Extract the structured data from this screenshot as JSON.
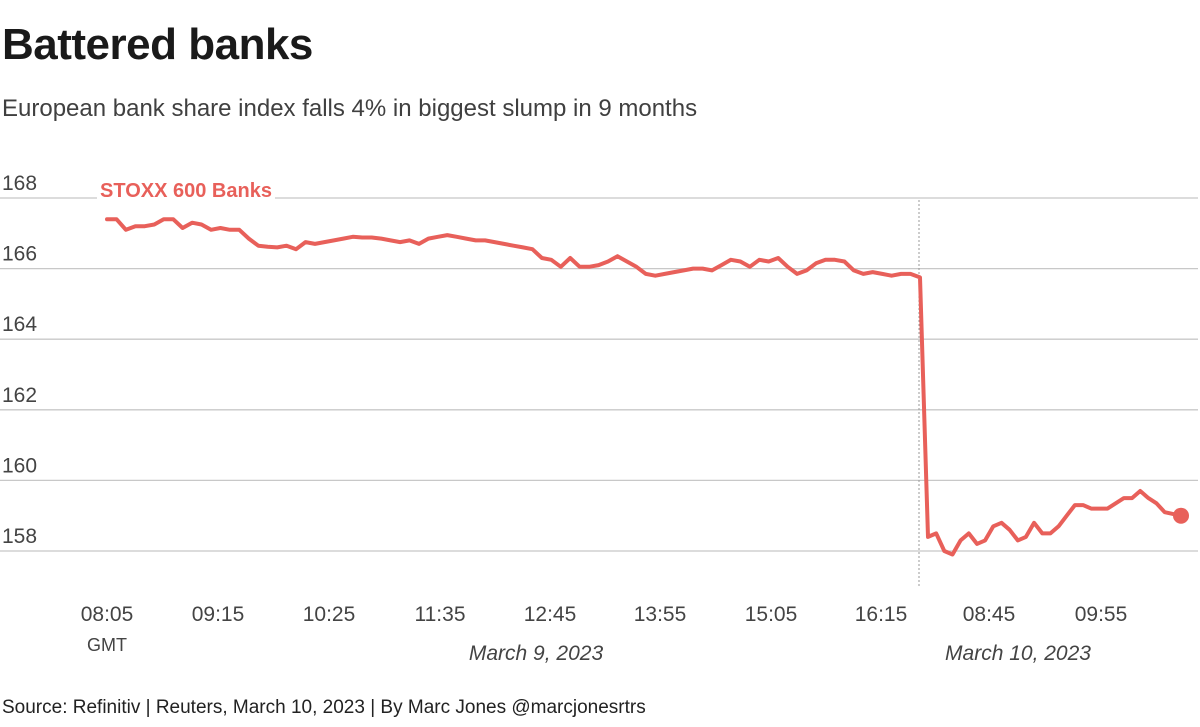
{
  "header": {
    "title": "Battered banks",
    "subtitle": "European bank share index falls 4% in biggest slump in 9 months"
  },
  "footer": {
    "source": "Source: Refinitiv | Reuters, March 10, 2023 | By Marc Jones @marcjonesrtrs"
  },
  "colors": {
    "series": "#e8605a",
    "grid": "#c8c8c8",
    "divider": "#999999"
  },
  "chart_data": {
    "type": "line",
    "title": "Battered banks",
    "subtitle": "European bank share index falls 4% in biggest slump in 9 months",
    "xlabel": "",
    "ylabel": "",
    "ylim": [
      157,
      168
    ],
    "yticks": [
      158,
      160,
      162,
      164,
      166,
      168
    ],
    "grid": true,
    "x_tick_labels": [
      "08:05",
      "09:15",
      "10:25",
      "11:35",
      "12:45",
      "13:55",
      "15:05",
      "16:15",
      "08:45",
      "09:55"
    ],
    "x_tick_sublabel": "GMT",
    "date_labels": [
      "March 9, 2023",
      "March 10, 2023"
    ],
    "series": [
      {
        "name": "STOXX 600 Banks",
        "day1": [
          167.4,
          167.4,
          167.1,
          167.2,
          167.2,
          167.25,
          167.4,
          167.4,
          167.15,
          167.3,
          167.25,
          167.1,
          167.15,
          167.1,
          167.1,
          166.85,
          166.65,
          166.62,
          166.6,
          166.65,
          166.55,
          166.75,
          166.7,
          166.75,
          166.8,
          166.85,
          166.9,
          166.88,
          166.88,
          166.85,
          166.8,
          166.75,
          166.8,
          166.7,
          166.85,
          166.9,
          166.95,
          166.9,
          166.85,
          166.8,
          166.8,
          166.75,
          166.7,
          166.65,
          166.6,
          166.55,
          166.3,
          166.25,
          166.05,
          166.3,
          166.05,
          166.05,
          166.1,
          166.2,
          166.35,
          166.2,
          166.05,
          165.85,
          165.8,
          165.85,
          165.9,
          165.95,
          166.0,
          166.0,
          165.95,
          166.1,
          166.25,
          166.2,
          166.05,
          166.25,
          166.2,
          166.3,
          166.05,
          165.85,
          165.95,
          166.15,
          166.25,
          166.25,
          166.2,
          165.95,
          165.85,
          165.9,
          165.85,
          165.8,
          165.85,
          165.85,
          165.75
        ],
        "day2": [
          158.4,
          158.5,
          158.0,
          157.9,
          158.3,
          158.5,
          158.2,
          158.3,
          158.7,
          158.8,
          158.6,
          158.3,
          158.4,
          158.8,
          158.5,
          158.5,
          158.7,
          159.0,
          159.3,
          159.3,
          159.2,
          159.2,
          159.2,
          159.35,
          159.5,
          159.5,
          159.7,
          159.5,
          159.35,
          159.1,
          159.05,
          159.0
        ],
        "last_value": 159.0
      }
    ]
  }
}
